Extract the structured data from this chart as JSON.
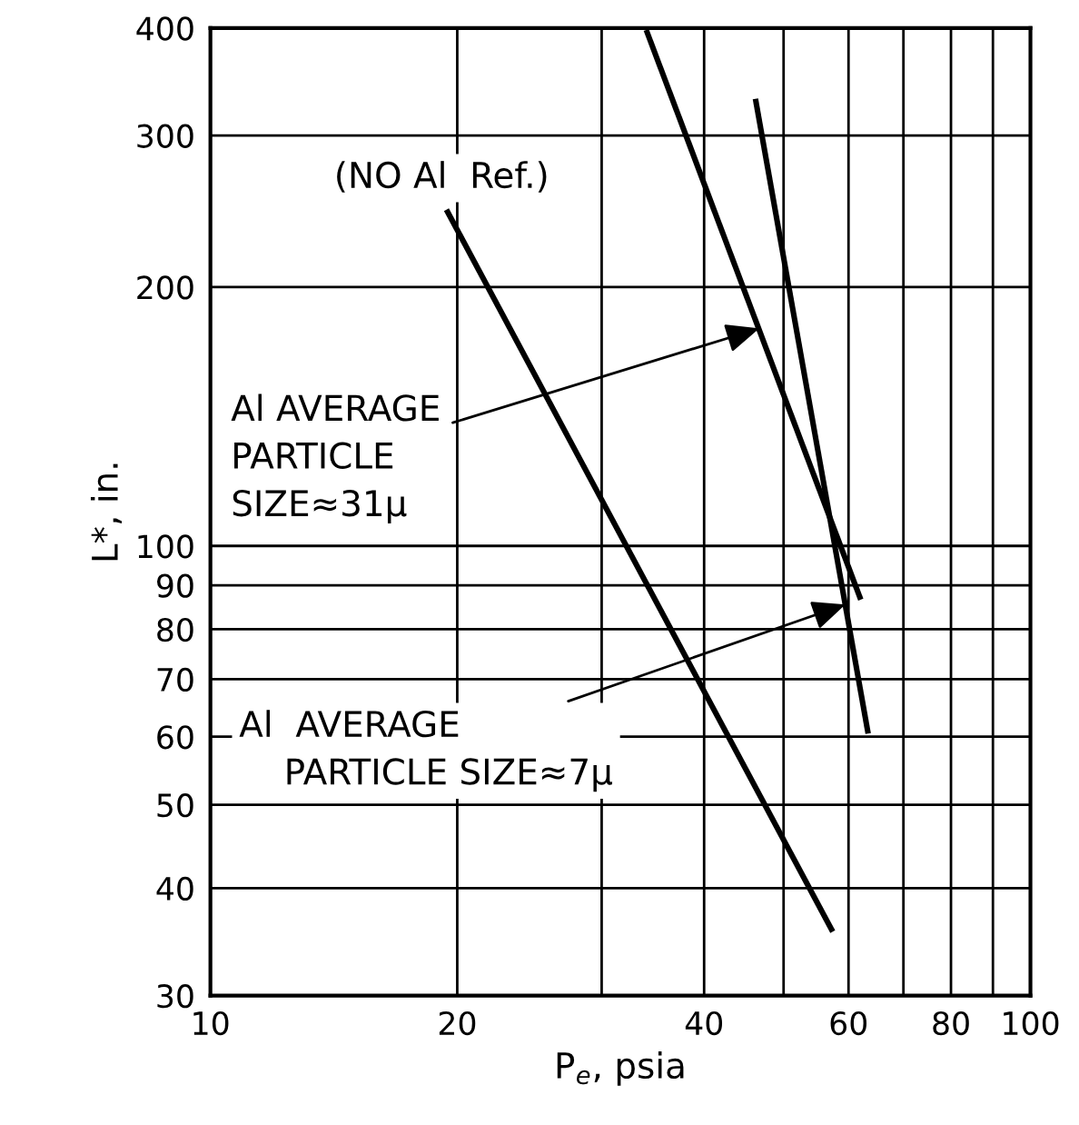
{
  "chart_data": {
    "type": "line",
    "xlabel": "P$_{e}$, psia",
    "ylabel": "L*, in.",
    "log": "xy",
    "xlim": [
      10,
      100
    ],
    "ylim": [
      30,
      400
    ],
    "xticks": [
      10,
      20,
      {
        "value": 30,
        "label": null
      },
      40,
      {
        "value": 50,
        "label": null
      },
      60,
      {
        "value": 70,
        "label": null
      },
      80,
      {
        "value": 90,
        "label": null
      },
      100
    ],
    "yticks": [
      30,
      40,
      50,
      60,
      70,
      80,
      90,
      100,
      200,
      300,
      400
    ],
    "grid": true,
    "marker": "none",
    "line_style": "solid",
    "series": [
      {
        "color": "#000000",
        "x": [
          19.4,
          57.4
        ],
        "values": [
          246,
          35.6
        ]
      },
      {
        "color": "#000000",
        "x": [
          34.0,
          62.1
        ],
        "values": [
          398,
          86.6
        ]
      },
      {
        "color": "#000000",
        "x": [
          46.2,
          63.4
        ],
        "values": [
          331,
          60.5
        ]
      }
    ],
    "annotations": [
      "(NO Al  Ref.)",
      {
        "text": "Al AVERAGE\nPARTICLE\nSIZE≈31μ",
        "x": 46.7,
        "y": 179
      },
      {
        "text": "Al  AVERAGE\n    PARTICLE SIZE≈7μ",
        "x": 59.5,
        "y": 85.5
      }
    ]
  }
}
